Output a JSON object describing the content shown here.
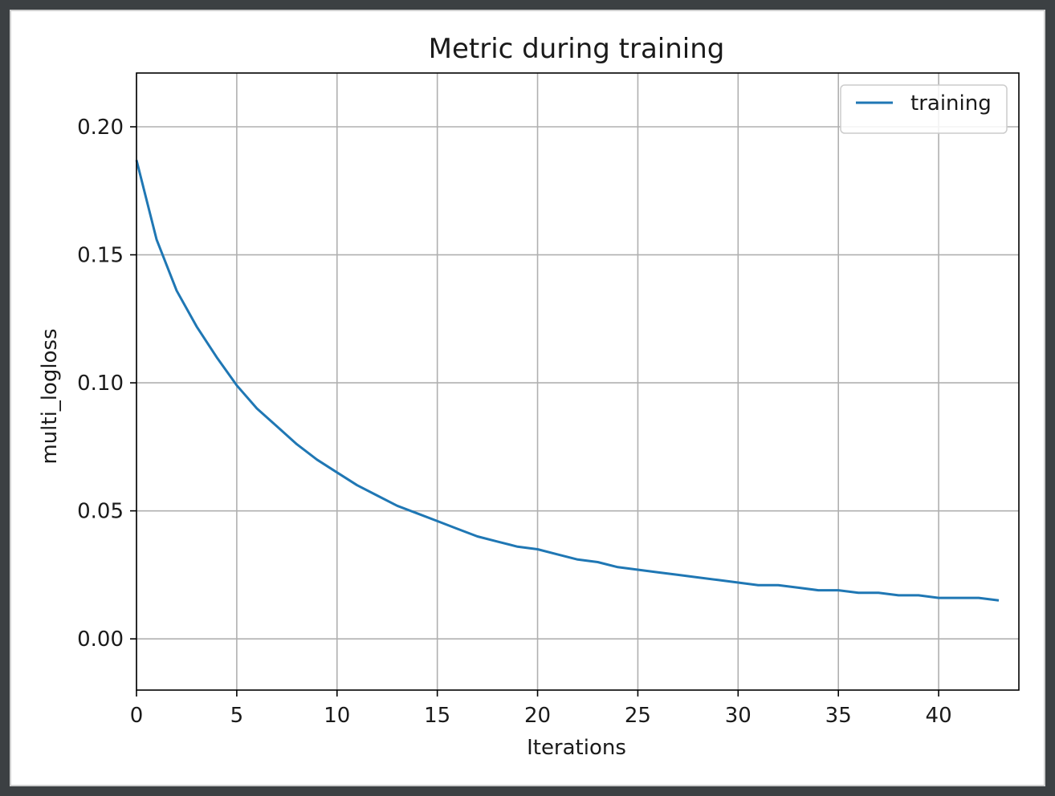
{
  "chart_data": {
    "type": "line",
    "title": "Metric during training",
    "xlabel": "Iterations",
    "ylabel": "multi_logloss",
    "xlim": [
      0,
      44
    ],
    "ylim": [
      -0.02,
      0.221
    ],
    "xticks": [
      0,
      5,
      10,
      15,
      20,
      25,
      30,
      35,
      40
    ],
    "yticks": [
      0.0,
      0.05,
      0.1,
      0.15,
      0.2
    ],
    "xtick_labels": [
      "0",
      "5",
      "10",
      "15",
      "20",
      "25",
      "30",
      "35",
      "40"
    ],
    "ytick_labels": [
      "0.00",
      "0.05",
      "0.10",
      "0.15",
      "0.20"
    ],
    "grid": true,
    "legend_position": "top-right",
    "series": [
      {
        "name": "training",
        "color": "#1f77b4",
        "x": [
          0,
          1,
          2,
          3,
          4,
          5,
          6,
          7,
          8,
          9,
          10,
          11,
          12,
          13,
          14,
          15,
          16,
          17,
          18,
          19,
          20,
          21,
          22,
          23,
          24,
          25,
          26,
          27,
          28,
          29,
          30,
          31,
          32,
          33,
          34,
          35,
          36,
          37,
          38,
          39,
          40,
          41,
          42,
          43
        ],
        "y": [
          0.187,
          0.156,
          0.136,
          0.122,
          0.11,
          0.099,
          0.09,
          0.083,
          0.076,
          0.07,
          0.065,
          0.06,
          0.056,
          0.052,
          0.049,
          0.046,
          0.043,
          0.04,
          0.038,
          0.036,
          0.035,
          0.033,
          0.031,
          0.03,
          0.028,
          0.027,
          0.026,
          0.025,
          0.024,
          0.023,
          0.022,
          0.021,
          0.021,
          0.02,
          0.019,
          0.019,
          0.018,
          0.018,
          0.017,
          0.017,
          0.016,
          0.016,
          0.016,
          0.015
        ]
      }
    ]
  }
}
